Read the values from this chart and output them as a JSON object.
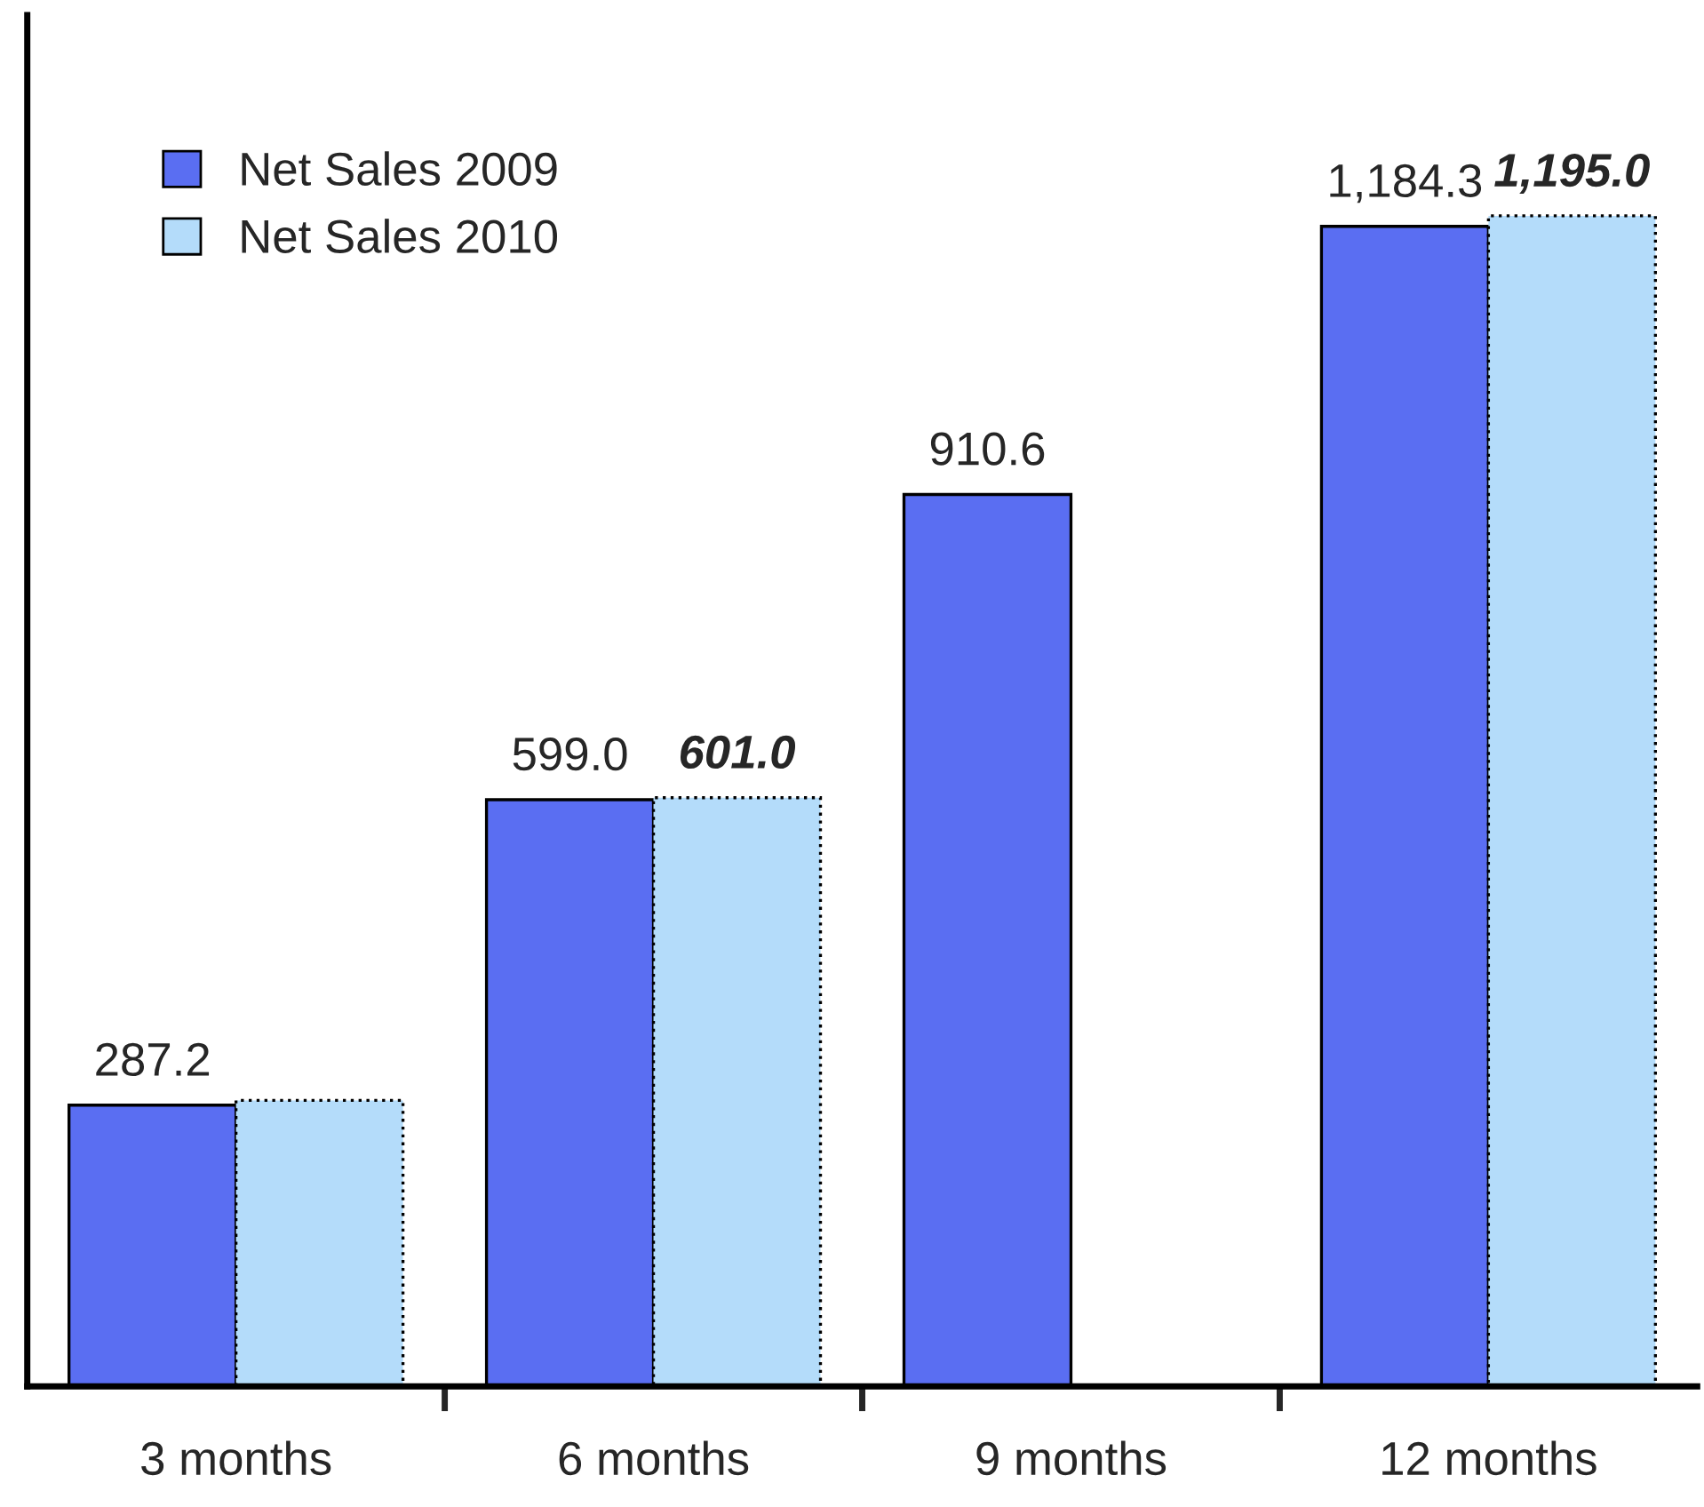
{
  "chart_data": {
    "type": "bar",
    "categories": [
      "3 months",
      "6 months",
      "9 months",
      "12 months"
    ],
    "series": [
      {
        "name": "Net Sales 2009",
        "color": "#5a6ef2",
        "values": [
          287.2,
          599.0,
          910.6,
          1184.3
        ],
        "value_labels": [
          "287.2",
          "599.0",
          "910.6",
          "1,184.3"
        ]
      },
      {
        "name": "Net Sales 2010",
        "color": "#b4dcfa",
        "values": [
          292,
          601.0,
          null,
          1195.0
        ],
        "value_labels": [
          null,
          "601.0",
          null,
          "1,195.0"
        ]
      }
    ],
    "ylim": [
      0,
      1400
    ],
    "tick_labels": "x",
    "legend": "top left",
    "grid": false
  }
}
